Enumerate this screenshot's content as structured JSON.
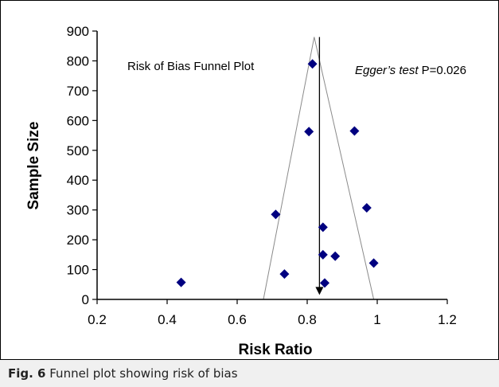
{
  "chart_data": {
    "type": "scatter",
    "title": "Risk of Bias Funnel Plot",
    "annotation_italic": "Egger’s test",
    "annotation_rest": " P=0.026",
    "xlabel": "Risk Ratio",
    "ylabel": "Sample Size",
    "xlim": [
      0.2,
      1.2
    ],
    "ylim": [
      0,
      900
    ],
    "xticks": [
      "0.2",
      "0.4",
      "0.6",
      "0.8",
      "1",
      "1.2"
    ],
    "yticks": [
      "0",
      "100",
      "200",
      "300",
      "400",
      "500",
      "600",
      "700",
      "800",
      "900"
    ],
    "grid": false,
    "funnel": {
      "apex": [
        0.82,
        880
      ],
      "left_base": [
        0.675,
        0
      ],
      "right_base": [
        0.99,
        0
      ]
    },
    "arrow": {
      "x": 0.835,
      "from": 880,
      "to": 15
    },
    "points": [
      {
        "x": 0.815,
        "y": 790
      },
      {
        "x": 0.805,
        "y": 563
      },
      {
        "x": 0.935,
        "y": 565
      },
      {
        "x": 0.71,
        "y": 285
      },
      {
        "x": 0.97,
        "y": 307
      },
      {
        "x": 0.845,
        "y": 242
      },
      {
        "x": 0.845,
        "y": 150
      },
      {
        "x": 0.88,
        "y": 145
      },
      {
        "x": 0.99,
        "y": 122
      },
      {
        "x": 0.735,
        "y": 85
      },
      {
        "x": 0.85,
        "y": 55
      },
      {
        "x": 0.44,
        "y": 57
      }
    ],
    "marker_color": "#000080"
  },
  "caption": {
    "label": "Fig. 6",
    "text": " Funnel plot showing risk of bias"
  }
}
